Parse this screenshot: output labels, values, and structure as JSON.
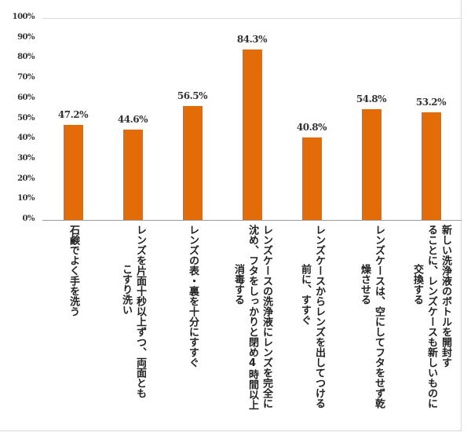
{
  "chart_data": {
    "type": "bar",
    "title": "",
    "xlabel": "",
    "ylabel": "",
    "ylim": [
      0,
      100
    ],
    "y_ticks": [
      "0%",
      "10%",
      "20%",
      "30%",
      "40%",
      "50%",
      "60%",
      "70%",
      "80%",
      "90%",
      "100%"
    ],
    "grid": false,
    "legend": null,
    "bar_color": "#e36c09",
    "categories": [
      "石鹸でよく手を洗う",
      "レンズを片面十秒以上ずつ、両面ともこすり洗い",
      "レンズの表・裏を十分にすすぐ",
      "レンズケースの洗浄液にレンズを完全に沈め、フタをしっかりと閉め4時間以上消毒する",
      "レンズケースからレンズを出してつける前に、すすぐ",
      "レンズケースは、空にしてフタをせず乾燥させる",
      "新しい洗浄液のボトルを開封することに、レンズケースも新しいものに交換する"
    ],
    "values": [
      47.2,
      44.6,
      56.5,
      84.3,
      40.8,
      54.8,
      53.2
    ],
    "value_labels": [
      "47.2%",
      "44.6%",
      "56.5%",
      "84.3%",
      "40.8%",
      "54.8%",
      "53.2%"
    ],
    "category_lines": [
      [
        "石鹸でよく手を洗う"
      ],
      [
        "レンズを片面十秒以上ずつ、両面とも",
        "こすり洗い"
      ],
      [
        "レンズの表・裏を十分にすすぐ"
      ],
      [
        "レンズケースの洗浄液にレンズを完全に",
        "沈め、フタをしっかりと閉め4時間以上",
        "消毒する"
      ],
      [
        "レンズケースからレンズを出してつける",
        "前に、すすぐ"
      ],
      [
        "レンズケースは、空にしてフタをせず乾",
        "燥させる"
      ],
      [
        "新しい洗浄液のボトルを開封す",
        "ることに、レンズケースも新しいものに",
        "交換する"
      ]
    ]
  }
}
